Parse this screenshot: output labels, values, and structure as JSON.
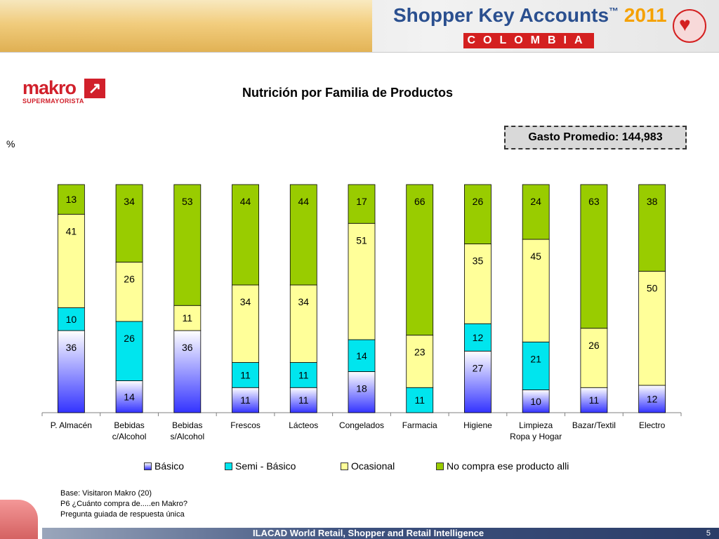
{
  "header": {
    "brand": "Shopper Key Accounts",
    "tm": "™",
    "year": "2011",
    "country": "COLOMBIA"
  },
  "logo": {
    "main": "makro",
    "sub": "SUPERMAYORISTA"
  },
  "gasto_label": "Gasto Promedio: 144,983",
  "y_unit": "%",
  "notes": {
    "line1": "Base: Visitaron Makro (20)",
    "line2": "P6 ¿Cuánto compra de.....en Makro?",
    "line3": "Pregunta guiada de respuesta única"
  },
  "footer": {
    "text": "ILACAD World Retail, Shopper and Retail Intelligence",
    "page": "5"
  },
  "colors": {
    "basico": "#3333ff",
    "semi": "#00e5ee",
    "ocasional": "#ffff99",
    "no_compra": "#99cc00"
  },
  "chart_data": {
    "type": "bar",
    "stacked": true,
    "title": "Nutrición por Familia de Productos",
    "ylabel": "%",
    "ylim": [
      0,
      100
    ],
    "legend_position": "bottom",
    "grid": false,
    "categories": [
      "P. Almacén",
      "Bebidas c/Alcohol",
      "Bebidas s/Alcohol",
      "Frescos",
      "Lácteos",
      "Congelados",
      "Farmacia",
      "Higiene",
      "Limpieza Ropa y Hogar",
      "Bazar/Textil",
      "Electro"
    ],
    "category_lines": [
      [
        "P. Almacén"
      ],
      [
        "Bebidas",
        "c/Alcohol"
      ],
      [
        "Bebidas",
        "s/Alcohol"
      ],
      [
        "Frescos"
      ],
      [
        "Lácteos"
      ],
      [
        "Congelados"
      ],
      [
        "Farmacia"
      ],
      [
        "Higiene"
      ],
      [
        "Limpieza",
        "Ropa y Hogar"
      ],
      [
        "Bazar/Textil"
      ],
      [
        "Electro"
      ]
    ],
    "series": [
      {
        "name": "Básico",
        "values": [
          36,
          14,
          36,
          11,
          11,
          18,
          0,
          27,
          10,
          11,
          12
        ]
      },
      {
        "name": "Semi - Básico",
        "values": [
          10,
          26,
          0,
          11,
          11,
          14,
          11,
          12,
          21,
          0,
          0
        ]
      },
      {
        "name": "Ocasional",
        "values": [
          41,
          26,
          11,
          34,
          34,
          51,
          23,
          35,
          45,
          26,
          50
        ]
      },
      {
        "name": "No compra ese producto alli",
        "values": [
          13,
          34,
          53,
          44,
          44,
          17,
          66,
          26,
          24,
          63,
          38
        ]
      }
    ]
  }
}
